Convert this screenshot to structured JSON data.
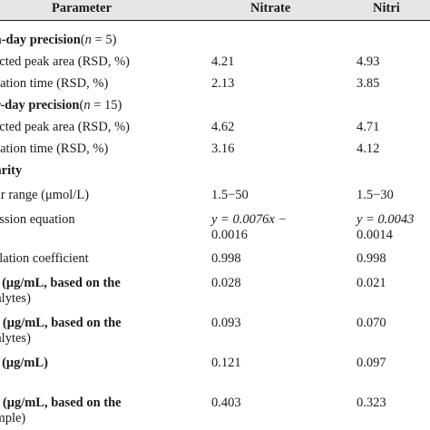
{
  "header": {
    "parameter": "Parameter",
    "nitrate": "Nitrate",
    "nitrite": "Nitri"
  },
  "rows": [
    {
      "label": "ra-day precision",
      "n_var": "n",
      "n_rest": " = 5)",
      "bold": true
    },
    {
      "label": "rected peak area (RSD, %)",
      "nitrate": "4.21",
      "nitrite": "4.93"
    },
    {
      "label": "gration time (RSD, %)",
      "nitrate": "2.13",
      "nitrite": "3.85"
    },
    {
      "label": "er-day precision",
      "n_var": "n",
      "n_rest": " = 15)",
      "bold": true
    },
    {
      "label": "rected peak area (RSD, %)",
      "nitrate": "4.62",
      "nitrite": "4.71"
    },
    {
      "label": "gration time (RSD, %)",
      "nitrate": "3.16",
      "nitrite": "4.12"
    },
    {
      "label": "earity",
      "bold": true
    },
    {
      "label": "ear range (μmol/L)",
      "nitrate": "1.5−50",
      "nitrite": "1.5−30"
    },
    {
      "label": "ression equation",
      "nitrate": "y = 0.0076x −",
      "nitrate2": "0.0016",
      "nitrite": "y = 0.0043",
      "nitrite2": "0.0014"
    },
    {
      "label": "relation coefficient",
      "nitrate": "0.998",
      "nitrite": "0.998"
    },
    {
      "label": "D (μg/mL, based on the",
      "label2": "nalytes)",
      "nitrate": "0.028",
      "nitrite": "0.021"
    },
    {
      "label": "Q (μg/mL, based on the",
      "label2": "nalytes)",
      "nitrate": "0.093",
      "nitrite": "0.070"
    },
    {
      "label": "D (μg/mL)",
      "nitrate": "0.121",
      "nitrite": "0.097"
    },
    {
      "label": "Q (μg/mL, based on the",
      "label2": "ample)",
      "nitrate": "0.403",
      "nitrite": "0.323"
    }
  ]
}
